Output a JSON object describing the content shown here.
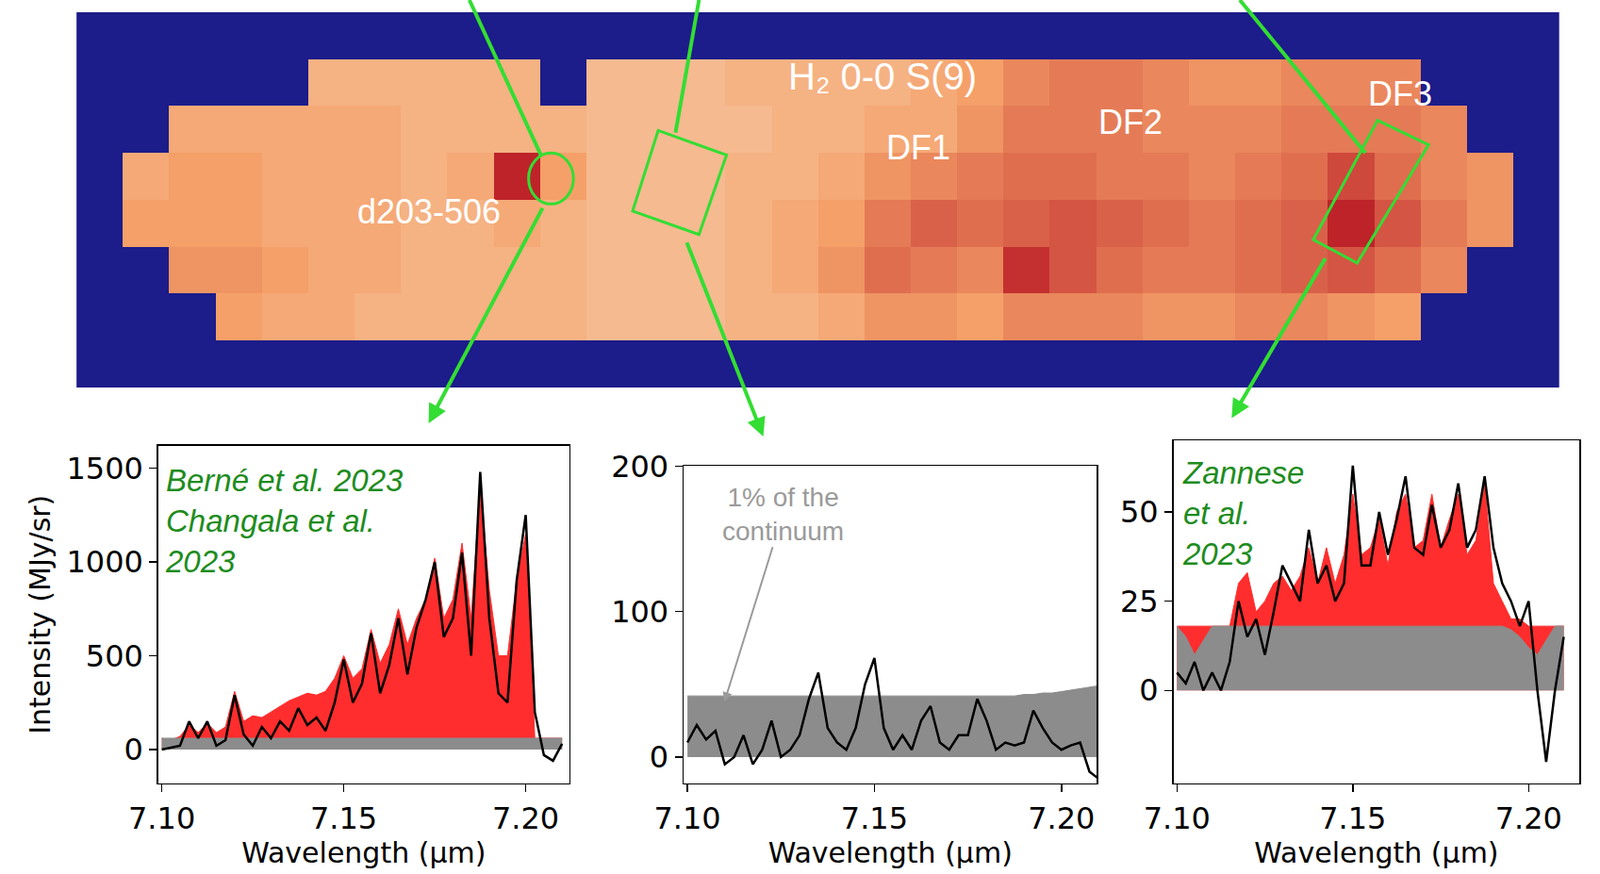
{
  "chart_data": [
    {
      "type": "heatmap",
      "title": "H₂ 0-0 S(9)",
      "labels": [
        "d203-506",
        "DF1",
        "DF2",
        "DF3"
      ],
      "color_range": [
        0,
        1
      ],
      "tick_labels": false,
      "cells": [
        [
          null,
          null,
          null,
          null,
          null,
          null,
          null,
          null,
          null,
          null,
          null,
          null,
          null,
          null,
          null,
          null,
          null,
          null,
          null,
          null,
          null,
          null,
          null,
          null,
          null,
          null,
          null,
          null,
          null,
          null,
          null,
          null
        ],
        [
          null,
          null,
          null,
          null,
          null,
          0.3,
          0.3,
          0.3,
          0.3,
          0.3,
          null,
          0.25,
          0.25,
          0.25,
          0.3,
          0.3,
          0.3,
          0.3,
          0.35,
          0.4,
          0.5,
          0.55,
          0.55,
          0.5,
          0.45,
          0.45,
          0.5,
          0.5,
          0.5,
          null,
          null,
          null
        ],
        [
          null,
          null,
          0.35,
          0.35,
          0.35,
          0.35,
          0.35,
          0.3,
          0.3,
          0.3,
          0.3,
          0.25,
          0.25,
          0.25,
          0.25,
          0.3,
          0.3,
          0.35,
          0.35,
          0.45,
          0.55,
          0.55,
          0.55,
          0.5,
          0.5,
          0.5,
          0.55,
          0.55,
          0.55,
          0.5,
          null,
          null
        ],
        [
          null,
          0.35,
          0.4,
          0.4,
          0.35,
          0.35,
          0.35,
          0.3,
          0.35,
          0.9,
          0.4,
          0.25,
          0.25,
          0.25,
          0.3,
          0.3,
          0.35,
          0.45,
          0.5,
          0.55,
          0.6,
          0.6,
          0.55,
          0.55,
          0.5,
          0.55,
          0.6,
          0.75,
          0.6,
          0.5,
          0.45,
          null
        ],
        [
          null,
          0.4,
          0.4,
          0.4,
          0.35,
          0.35,
          0.35,
          0.3,
          0.3,
          0.35,
          0.3,
          0.25,
          0.25,
          0.25,
          0.3,
          0.35,
          0.4,
          0.55,
          0.65,
          0.6,
          0.65,
          0.7,
          0.65,
          0.6,
          0.55,
          0.6,
          0.65,
          0.9,
          0.7,
          0.55,
          0.45,
          null
        ],
        [
          null,
          null,
          0.45,
          0.45,
          0.4,
          0.35,
          0.35,
          0.3,
          0.3,
          0.3,
          0.3,
          0.25,
          0.25,
          0.25,
          0.3,
          0.35,
          0.45,
          0.6,
          0.55,
          0.5,
          0.85,
          0.7,
          0.6,
          0.55,
          0.55,
          0.6,
          0.65,
          0.7,
          0.6,
          0.5,
          null,
          null
        ],
        [
          null,
          null,
          null,
          0.4,
          0.35,
          0.35,
          0.3,
          0.3,
          0.3,
          0.3,
          0.3,
          0.25,
          0.25,
          0.25,
          0.3,
          0.3,
          0.35,
          0.45,
          0.45,
          0.4,
          0.5,
          0.5,
          0.5,
          0.45,
          0.45,
          0.5,
          0.5,
          0.45,
          0.4,
          null,
          null,
          null
        ],
        [
          null,
          null,
          null,
          null,
          null,
          null,
          null,
          null,
          null,
          null,
          null,
          null,
          null,
          null,
          null,
          null,
          null,
          null,
          null,
          null,
          null,
          null,
          null,
          null,
          null,
          null,
          null,
          null,
          null,
          null,
          null,
          null
        ]
      ]
    },
    {
      "type": "line",
      "annotations": [
        "Berné et al. 2023",
        "Changala et al.",
        "2023"
      ],
      "xlabel": "Wavelength (μm)",
      "ylabel": "Intensity (MJy/sr)",
      "x": [
        7.1,
        7.1025,
        7.105,
        7.1075,
        7.11,
        7.1125,
        7.115,
        7.1175,
        7.12,
        7.1225,
        7.125,
        7.1275,
        7.13,
        7.1325,
        7.135,
        7.1375,
        7.14,
        7.1425,
        7.145,
        7.1475,
        7.15,
        7.1525,
        7.155,
        7.1575,
        7.16,
        7.1625,
        7.165,
        7.1675,
        7.17,
        7.1725,
        7.175,
        7.1775,
        7.18,
        7.1825,
        7.185,
        7.1875,
        7.19,
        7.1925,
        7.195,
        7.1975,
        7.2,
        7.2025,
        7.205,
        7.2075,
        7.21
      ],
      "series": [
        {
          "type": "area",
          "color": "#ff2d2d",
          "values": [
            60,
            50,
            70,
            130,
            90,
            140,
            90,
            120,
            310,
            150,
            180,
            170,
            200,
            230,
            260,
            280,
            300,
            290,
            310,
            380,
            500,
            380,
            430,
            640,
            460,
            560,
            750,
            560,
            700,
            800,
            1020,
            700,
            800,
            1100,
            700,
            1400,
            850,
            500,
            500,
            900,
            1150,
            60,
            60,
            60,
            60
          ]
        },
        {
          "type": "area",
          "color": "#8c8c8c",
          "values": [
            60,
            60,
            60,
            60,
            60,
            60,
            60,
            60,
            60,
            60,
            60,
            60,
            60,
            60,
            60,
            60,
            60,
            60,
            60,
            60,
            60,
            60,
            60,
            60,
            60,
            60,
            60,
            60,
            60,
            60,
            60,
            60,
            60,
            60,
            60,
            60,
            60,
            60,
            60,
            60,
            60,
            60,
            60,
            60,
            60
          ]
        },
        {
          "type": "line",
          "color": "#000000",
          "values": [
            0,
            10,
            20,
            150,
            60,
            150,
            20,
            50,
            290,
            80,
            20,
            120,
            60,
            150,
            100,
            220,
            130,
            170,
            100,
            250,
            480,
            250,
            350,
            620,
            300,
            450,
            700,
            400,
            650,
            800,
            1000,
            600,
            700,
            1050,
            500,
            1480,
            700,
            300,
            250,
            900,
            1250,
            200,
            -30,
            -60,
            30
          ]
        }
      ],
      "xlim": [
        7.099,
        7.212
      ],
      "ylim": [
        -180,
        1620
      ],
      "xticks": [
        {
          "value": 7.1,
          "label": "7.10"
        },
        7.15,
        {
          "value": 7.2,
          "label": "7.20"
        }
      ],
      "yticks": [
        0,
        500,
        1000,
        1500
      ]
    },
    {
      "type": "line",
      "annotations": [
        "1% of the",
        "continuum"
      ],
      "xlabel": "Wavelength (μm)",
      "x": [
        7.1,
        7.1025,
        7.105,
        7.1075,
        7.11,
        7.1125,
        7.115,
        7.1175,
        7.12,
        7.1225,
        7.125,
        7.1275,
        7.13,
        7.1325,
        7.135,
        7.1375,
        7.14,
        7.1425,
        7.145,
        7.1475,
        7.15,
        7.1525,
        7.155,
        7.1575,
        7.16,
        7.1625,
        7.165,
        7.1675,
        7.17,
        7.1725,
        7.175,
        7.1775,
        7.18,
        7.1825,
        7.185,
        7.1875,
        7.19,
        7.1925,
        7.195,
        7.1975,
        7.2,
        7.2025,
        7.205,
        7.2075,
        7.21
      ],
      "series": [
        {
          "type": "area",
          "color": "#8c8c8c",
          "values": [
            42,
            42,
            42,
            42,
            42,
            42,
            42,
            42,
            42,
            42,
            42,
            42,
            42,
            42,
            42,
            42,
            42,
            42,
            42,
            42,
            42,
            42,
            42,
            42,
            42,
            42,
            42,
            42,
            42,
            42,
            42,
            42,
            42,
            42,
            42,
            42,
            43,
            43,
            44,
            44,
            45,
            46,
            47,
            48,
            49
          ]
        },
        {
          "type": "line",
          "color": "#000000",
          "values": [
            10,
            22,
            12,
            18,
            -5,
            0,
            15,
            -5,
            5,
            25,
            0,
            5,
            15,
            40,
            58,
            20,
            10,
            5,
            20,
            50,
            68,
            20,
            5,
            15,
            5,
            25,
            35,
            10,
            5,
            15,
            15,
            40,
            25,
            5,
            10,
            8,
            10,
            32,
            20,
            10,
            5,
            8,
            10,
            -10,
            -15
          ]
        }
      ],
      "xlim": [
        7.099,
        7.2095
      ],
      "ylim": [
        -18,
        200
      ],
      "xticks": [
        {
          "value": 7.1,
          "label": "7.10"
        },
        7.15,
        {
          "value": 7.2,
          "label": "7.20"
        }
      ],
      "yticks": [
        0,
        100,
        200
      ]
    },
    {
      "type": "line",
      "annotations": [
        "Zannese",
        "et al.",
        "2023"
      ],
      "xlabel": "Wavelength (μm)",
      "x": [
        7.1,
        7.1025,
        7.105,
        7.1075,
        7.11,
        7.1125,
        7.115,
        7.1175,
        7.12,
        7.1225,
        7.125,
        7.1275,
        7.13,
        7.1325,
        7.135,
        7.1375,
        7.14,
        7.1425,
        7.145,
        7.1475,
        7.15,
        7.1525,
        7.155,
        7.1575,
        7.16,
        7.1625,
        7.165,
        7.1675,
        7.17,
        7.1725,
        7.175,
        7.1775,
        7.18,
        7.1825,
        7.185,
        7.1875,
        7.19,
        7.1925,
        7.195,
        7.1975,
        7.2,
        7.2025,
        7.205,
        7.2075,
        7.21
      ],
      "series": [
        {
          "type": "area",
          "color": "#ff2d2d",
          "values": [
            18,
            18,
            18,
            18,
            18,
            18,
            18,
            30,
            33,
            22,
            25,
            30,
            32,
            28,
            32,
            40,
            30,
            40,
            30,
            38,
            55,
            38,
            40,
            48,
            35,
            50,
            55,
            40,
            42,
            55,
            40,
            48,
            55,
            38,
            42,
            58,
            30,
            25,
            20,
            20,
            18,
            18,
            18,
            18,
            18
          ]
        },
        {
          "type": "area",
          "color": "#8c8c8c",
          "values": [
            18,
            15,
            10,
            14,
            18,
            18,
            18,
            18,
            18,
            18,
            18,
            18,
            18,
            18,
            18,
            18,
            18,
            18,
            18,
            18,
            18,
            18,
            18,
            18,
            18,
            18,
            18,
            18,
            18,
            18,
            18,
            18,
            18,
            18,
            18,
            18,
            18,
            18,
            17,
            15,
            12,
            10,
            14,
            18,
            18
          ]
        },
        {
          "type": "line",
          "color": "#000000",
          "values": [
            5,
            2,
            8,
            0,
            5,
            0,
            8,
            25,
            15,
            20,
            10,
            22,
            35,
            30,
            25,
            45,
            30,
            35,
            25,
            30,
            63,
            35,
            35,
            50,
            38,
            48,
            60,
            40,
            38,
            52,
            40,
            45,
            58,
            40,
            45,
            60,
            40,
            30,
            25,
            18,
            25,
            0,
            -20,
            0,
            15
          ]
        }
      ],
      "xlim": [
        7.099,
        7.2145
      ],
      "ylim": [
        -26,
        70
      ],
      "xticks": [
        {
          "value": 7.1,
          "label": "7.10"
        },
        7.15,
        {
          "value": 7.2,
          "label": "7.20"
        }
      ],
      "yticks": [
        0,
        25,
        50
      ]
    }
  ]
}
